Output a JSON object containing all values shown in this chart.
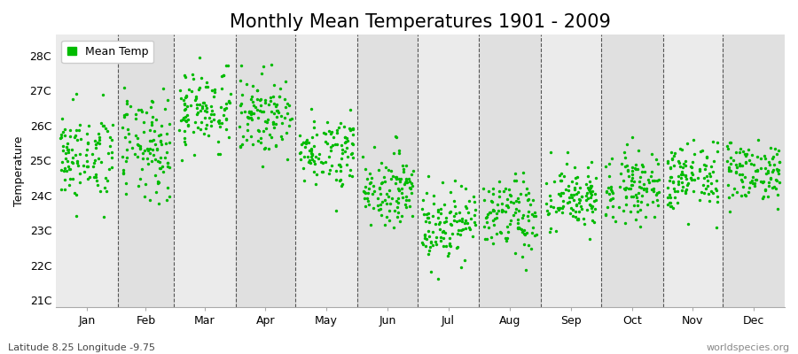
{
  "title": "Monthly Mean Temperatures 1901 - 2009",
  "ylabel": "Temperature",
  "xlabel_months": [
    "Jan",
    "Feb",
    "Mar",
    "Apr",
    "May",
    "Jun",
    "Jul",
    "Aug",
    "Sep",
    "Oct",
    "Nov",
    "Dec"
  ],
  "footnote_left": "Latitude 8.25 Longitude -9.75",
  "footnote_right": "worldspecies.org",
  "legend_label": "Mean Temp",
  "ylim": [
    20.8,
    28.6
  ],
  "yticks": [
    21,
    22,
    23,
    24,
    25,
    26,
    27,
    28
  ],
  "ytick_labels": [
    "21C",
    "22C",
    "23C",
    "24C",
    "25C",
    "26C",
    "27C",
    "28C"
  ],
  "dot_color": "#00bb00",
  "dot_size": 6,
  "band_color_odd": "#ebebeb",
  "band_color_even": "#e0e0e0",
  "plot_bg": "#e8e8e8",
  "title_fontsize": 15,
  "axis_fontsize": 9,
  "tick_fontsize": 9,
  "years": 109,
  "start_year": 1901,
  "monthly_means": [
    25.1,
    25.3,
    26.5,
    26.3,
    25.3,
    24.2,
    23.2,
    23.4,
    23.9,
    24.3,
    24.5,
    24.7
  ],
  "monthly_stds": [
    0.65,
    0.75,
    0.6,
    0.55,
    0.5,
    0.5,
    0.55,
    0.55,
    0.5,
    0.5,
    0.5,
    0.45
  ],
  "months_days": [
    31,
    28,
    31,
    30,
    31,
    30,
    31,
    31,
    30,
    31,
    30,
    31
  ]
}
